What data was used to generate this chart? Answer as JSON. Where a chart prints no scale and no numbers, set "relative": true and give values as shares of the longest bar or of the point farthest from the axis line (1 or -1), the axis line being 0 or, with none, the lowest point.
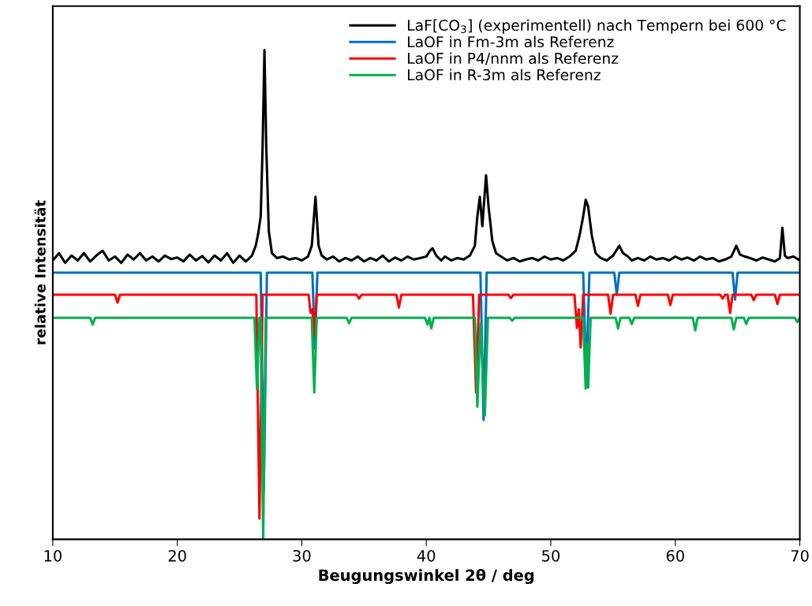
{
  "chart_data": {
    "type": "line",
    "relative": true,
    "xlabel": "Beugungswinkel 2θ / deg",
    "ylabel": "relative Intensität",
    "xlim": [
      10,
      70
    ],
    "xticks": [
      10,
      20,
      30,
      40,
      50,
      60,
      70
    ],
    "tick_labels": "x",
    "legend": "top right",
    "grid": false,
    "marker": "none",
    "line_style": "solid",
    "series": [
      {
        "name": "LaF[CO$_{3}$] (experimentell) nach Tempern bei 600 °C",
        "color": "#000000",
        "x": [
          10,
          10.5,
          11,
          11.5,
          12,
          12.5,
          13,
          13.5,
          14,
          14.5,
          15,
          15.5,
          16,
          16.5,
          17,
          17.5,
          18,
          18.5,
          19,
          19.5,
          20,
          20.5,
          21,
          21.5,
          22,
          22.5,
          23,
          23.5,
          24,
          24.5,
          25,
          25.5,
          26,
          26.3,
          26.5,
          26.7,
          26.85,
          27.0,
          27.15,
          27.35,
          27.6,
          28,
          28.5,
          29,
          29.5,
          30,
          30.5,
          30.8,
          31.1,
          31.35,
          31.6,
          32,
          32.5,
          33,
          33.5,
          34,
          34.5,
          35,
          35.5,
          36,
          36.5,
          37,
          37.5,
          38,
          38.5,
          39,
          39.5,
          40,
          40.3,
          40.5,
          40.8,
          41.2,
          41.5,
          42,
          42.5,
          43,
          43.5,
          43.9,
          44.1,
          44.3,
          44.5,
          44.8,
          45.0,
          45.3,
          45.6,
          46,
          46.5,
          47,
          47.5,
          48,
          48.5,
          49,
          49.5,
          50,
          50.5,
          51,
          51.5,
          52,
          52.3,
          52.6,
          52.8,
          53.0,
          53.3,
          53.6,
          54,
          54.5,
          55,
          55.5,
          55.8,
          56.2,
          56.5,
          57,
          57.5,
          58,
          58.5,
          59,
          59.5,
          60,
          60.5,
          61,
          61.5,
          62,
          62.5,
          63,
          63.5,
          64,
          64.5,
          64.9,
          65.2,
          65.6,
          66,
          66.5,
          67,
          67.5,
          68,
          68.4,
          68.6,
          68.8,
          69,
          69.5,
          70
        ],
        "values": [
          0.57,
          0.585,
          0.565,
          0.58,
          0.57,
          0.585,
          0.568,
          0.58,
          0.59,
          0.57,
          0.578,
          0.565,
          0.582,
          0.572,
          0.585,
          0.57,
          0.578,
          0.568,
          0.58,
          0.573,
          0.576,
          0.568,
          0.582,
          0.57,
          0.579,
          0.566,
          0.58,
          0.57,
          0.585,
          0.565,
          0.58,
          0.568,
          0.58,
          0.6,
          0.625,
          0.66,
          0.8,
          1.0,
          0.8,
          0.63,
          0.585,
          0.575,
          0.578,
          0.572,
          0.575,
          0.57,
          0.578,
          0.6,
          0.7,
          0.6,
          0.58,
          0.572,
          0.578,
          0.568,
          0.575,
          0.57,
          0.578,
          0.568,
          0.575,
          0.57,
          0.58,
          0.568,
          0.576,
          0.57,
          0.578,
          0.572,
          0.575,
          0.578,
          0.59,
          0.595,
          0.58,
          0.57,
          0.578,
          0.57,
          0.575,
          0.572,
          0.58,
          0.6,
          0.66,
          0.7,
          0.64,
          0.744,
          0.68,
          0.61,
          0.585,
          0.578,
          0.57,
          0.575,
          0.568,
          0.572,
          0.575,
          0.57,
          0.578,
          0.572,
          0.575,
          0.57,
          0.578,
          0.59,
          0.62,
          0.66,
          0.694,
          0.68,
          0.62,
          0.585,
          0.575,
          0.57,
          0.58,
          0.6,
          0.585,
          0.578,
          0.57,
          0.575,
          0.57,
          0.578,
          0.572,
          0.575,
          0.57,
          0.578,
          0.572,
          0.576,
          0.57,
          0.578,
          0.572,
          0.575,
          0.568,
          0.572,
          0.578,
          0.6,
          0.582,
          0.578,
          0.575,
          0.57,
          0.576,
          0.572,
          0.568,
          0.575,
          0.637,
          0.58,
          0.575,
          0.578,
          0.57
        ]
      },
      {
        "name": "LaOF in Fm-3m als Referenz",
        "color": "#0070c0",
        "x": [
          10,
          26.7,
          26.95,
          27.2,
          30.85,
          31.05,
          31.25,
          44.35,
          44.6,
          44.85,
          52.6,
          52.85,
          53.1,
          55.1,
          55.3,
          55.5,
          64.6,
          64.8,
          65.0,
          70
        ],
        "values": [
          0.545,
          0.545,
          0.1,
          0.545,
          0.545,
          0.39,
          0.545,
          0.545,
          0.244,
          0.545,
          0.545,
          0.33,
          0.545,
          0.545,
          0.5,
          0.545,
          0.545,
          0.49,
          0.545,
          0.545
        ]
      },
      {
        "name": "LaOF in P4/nnm als Referenz",
        "color": "#ff0000",
        "x": [
          10,
          15.0,
          15.2,
          15.4,
          26.35,
          26.6,
          26.85,
          30.55,
          30.7,
          30.85,
          31.0,
          31.2,
          34.4,
          34.6,
          34.8,
          37.6,
          37.8,
          38.0,
          43.75,
          44.0,
          44.25,
          46.6,
          46.8,
          47.0,
          51.9,
          52.1,
          52.25,
          52.4,
          52.6,
          54.6,
          54.8,
          55.0,
          56.8,
          57.0,
          57.2,
          59.4,
          59.6,
          59.8,
          63.6,
          63.8,
          64.0,
          64.2,
          64.4,
          64.6,
          66.1,
          66.3,
          66.5,
          68.0,
          68.2,
          68.4,
          70
        ],
        "values": [
          0.5,
          0.5,
          0.484,
          0.5,
          0.5,
          0.042,
          0.5,
          0.5,
          0.463,
          0.47,
          0.416,
          0.5,
          0.5,
          0.492,
          0.5,
          0.5,
          0.474,
          0.5,
          0.5,
          0.3,
          0.5,
          0.5,
          0.493,
          0.5,
          0.5,
          0.432,
          0.47,
          0.392,
          0.5,
          0.5,
          0.461,
          0.5,
          0.5,
          0.477,
          0.5,
          0.5,
          0.479,
          0.5,
          0.5,
          0.492,
          0.5,
          0.5,
          0.463,
          0.5,
          0.5,
          0.489,
          0.5,
          0.5,
          0.481,
          0.5,
          0.5
        ]
      },
      {
        "name": "LaOF in R-3m als Referenz",
        "color": "#00b050",
        "x": [
          10,
          13.0,
          13.2,
          13.4,
          26.2,
          26.4,
          26.6,
          26.7,
          26.9,
          27.1,
          30.8,
          31.0,
          31.2,
          33.6,
          33.8,
          34.0,
          39.9,
          40.1,
          40.25,
          40.4,
          40.6,
          43.9,
          44.1,
          44.35,
          44.7,
          44.95,
          46.7,
          46.9,
          47.1,
          52.6,
          52.8,
          52.9,
          53.0,
          53.2,
          55.2,
          55.4,
          55.6,
          56.3,
          56.5,
          56.7,
          61.4,
          61.6,
          61.8,
          64.5,
          64.7,
          64.9,
          65.5,
          65.7,
          65.9,
          69.6,
          69.8,
          70
        ],
        "values": [
          0.453,
          0.453,
          0.439,
          0.453,
          0.453,
          0.306,
          0.453,
          0.453,
          0.0,
          0.453,
          0.453,
          0.3,
          0.453,
          0.453,
          0.442,
          0.453,
          0.453,
          0.439,
          0.453,
          0.431,
          0.453,
          0.453,
          0.271,
          0.44,
          0.253,
          0.453,
          0.453,
          0.447,
          0.453,
          0.453,
          0.308,
          0.4,
          0.31,
          0.453,
          0.453,
          0.431,
          0.453,
          0.453,
          0.44,
          0.453,
          0.453,
          0.427,
          0.453,
          0.453,
          0.429,
          0.453,
          0.453,
          0.44,
          0.453,
          0.453,
          0.444,
          0.453
        ]
      }
    ]
  }
}
